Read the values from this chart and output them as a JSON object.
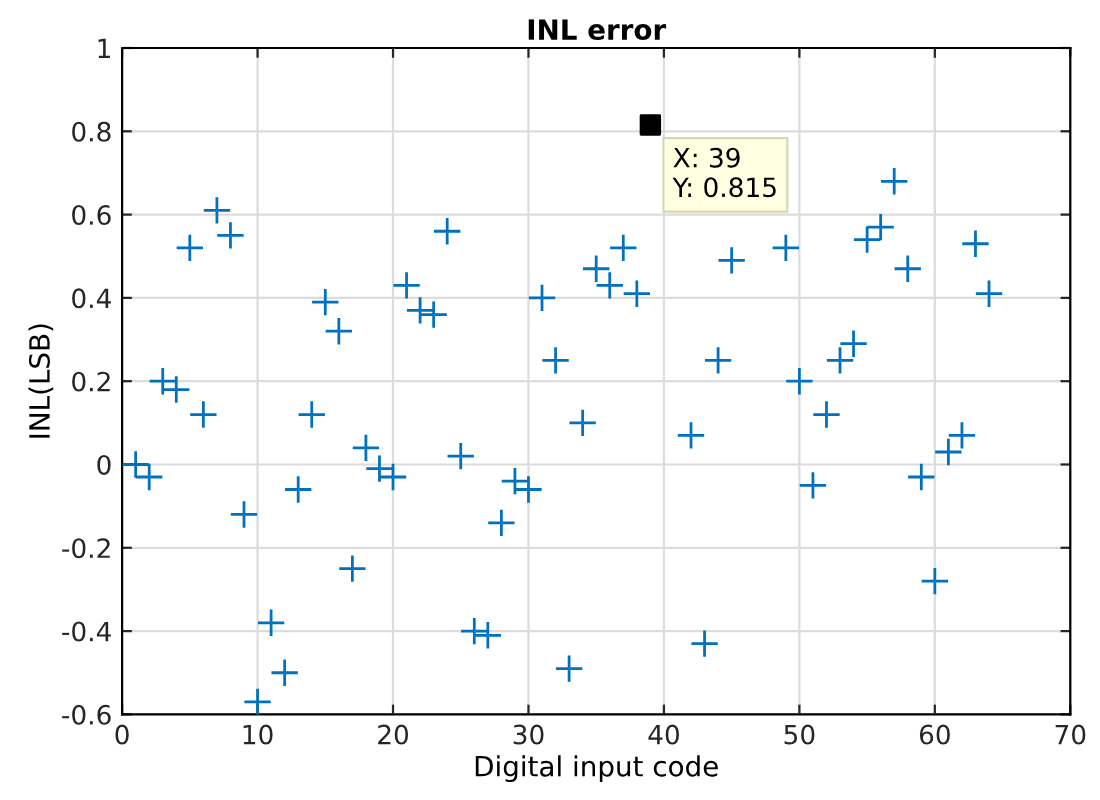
{
  "chart_data": {
    "type": "scatter",
    "title": "INL error",
    "xlabel": "Digital input code",
    "ylabel": "INL(LSB)",
    "series": [
      {
        "color": "#0072bd",
        "marker": "cross",
        "x": [
          1,
          2,
          3,
          4,
          5,
          6,
          7,
          8,
          9,
          10,
          11,
          12,
          13,
          14,
          15,
          16,
          17,
          18,
          19,
          20,
          21,
          22,
          23,
          24,
          25,
          26,
          27,
          28,
          29,
          30,
          31,
          32,
          33,
          34,
          35,
          36,
          37,
          38,
          40,
          42,
          43,
          44,
          45,
          49,
          50,
          51,
          52,
          53,
          54,
          55,
          56,
          57,
          58,
          59,
          60,
          61,
          62,
          63,
          64
        ],
        "values": [
          0.0,
          -0.03,
          0.2,
          0.18,
          0.52,
          0.12,
          0.61,
          0.55,
          -0.12,
          -0.57,
          -0.38,
          -0.5,
          -0.06,
          0.12,
          0.39,
          0.32,
          -0.25,
          0.04,
          -0.01,
          -0.03,
          0.43,
          0.37,
          0.36,
          0.56,
          0.02,
          -0.4,
          -0.41,
          -0.14,
          -0.04,
          -0.06,
          0.4,
          0.25,
          -0.49,
          0.1,
          0.47,
          0.43,
          0.52,
          0.41,
          null,
          0.07,
          -0.43,
          0.25,
          0.49,
          0.52,
          0.2,
          -0.05,
          0.12,
          0.25,
          0.29,
          0.54,
          0.57,
          0.68,
          0.47,
          -0.03,
          -0.28,
          0.03,
          0.07,
          0.53,
          0.41
        ]
      },
      {
        "color": "#000000",
        "marker": "square",
        "x": [
          39
        ],
        "values": [
          0.815
        ]
      }
    ],
    "annotations": [
      {
        "text": "X: 39\nY: 0.815",
        "x": 39,
        "y": 0.815
      }
    ],
    "xlim": [
      0,
      70
    ],
    "xticks": [
      0,
      10,
      20,
      30,
      40,
      50,
      60,
      70
    ],
    "ylim": [
      -0.6,
      1
    ],
    "yticks": [
      -0.6,
      -0.4,
      -0.2,
      0,
      0.2,
      0.4,
      0.6,
      0.8,
      1
    ],
    "grid": true
  }
}
